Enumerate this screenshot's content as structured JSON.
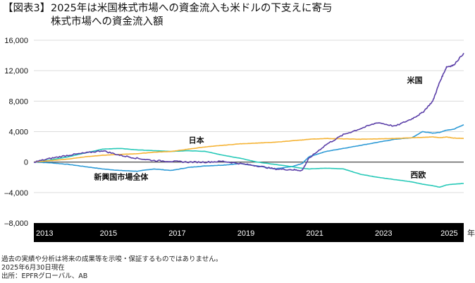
{
  "header": {
    "figure_tag": "【図表3】",
    "title": "2025年は米国株式市場への資金流入も米ドルの下支えに寄与",
    "subtitle": "株式市場への資金流入額"
  },
  "chart_data": {
    "type": "line",
    "title": "株式市場への資金流入額",
    "xlabel": "年",
    "ylabel": "",
    "xlim": [
      2013,
      2025.5
    ],
    "ylim": [
      -8000,
      16000
    ],
    "yticks": [
      16000,
      12000,
      8000,
      4000,
      0,
      -4000,
      -8000
    ],
    "ytick_labels": [
      "16,000",
      "12,000",
      "8,000",
      "4,000",
      "0",
      "–4,000",
      "–8,000"
    ],
    "xticks": [
      2013,
      2015,
      2017,
      2019,
      2021,
      2023,
      2025
    ],
    "xtick_labels": [
      "2013",
      "2015",
      "2017",
      "2019",
      "2021",
      "2023",
      "2025"
    ],
    "grid": true,
    "legend": "inline-labels",
    "x": [
      2013,
      2013.5,
      2014,
      2014.5,
      2015,
      2015.5,
      2016,
      2016.5,
      2017,
      2017.5,
      2018,
      2018.5,
      2019,
      2019.5,
      2020,
      2020.5,
      2020.8,
      2021,
      2021.5,
      2022,
      2022.5,
      2023,
      2023.5,
      2024,
      2024.3,
      2024.6,
      2024.8,
      2025,
      2025.2,
      2025.5
    ],
    "series": [
      {
        "name": "米国",
        "color": "#5b3fa8",
        "values": [
          0,
          500,
          900,
          1200,
          1500,
          900,
          500,
          200,
          100,
          0,
          0,
          100,
          -200,
          -500,
          -900,
          -1000,
          -1100,
          500,
          2300,
          3600,
          4400,
          5200,
          4700,
          5700,
          6500,
          8000,
          10500,
          12500,
          12700,
          14300
        ]
      },
      {
        "name": "日本",
        "color": "#f5b335",
        "values": [
          0,
          200,
          400,
          700,
          900,
          1000,
          1100,
          1300,
          1400,
          1700,
          2000,
          2200,
          2400,
          2500,
          2600,
          2800,
          2900,
          3000,
          3100,
          3050,
          3000,
          3050,
          3100,
          3200,
          3250,
          3300,
          3200,
          3300,
          3150,
          3100
        ]
      },
      {
        "name": "西欧",
        "color": "#27c9b8",
        "values": [
          0,
          300,
          700,
          1200,
          1700,
          1800,
          1600,
          1500,
          1400,
          1500,
          1400,
          900,
          500,
          0,
          -300,
          -600,
          -800,
          -900,
          -800,
          -900,
          -1600,
          -2000,
          -2300,
          -2600,
          -2900,
          -3100,
          -3300,
          -3000,
          -2900,
          -2800
        ]
      },
      {
        "name": "新興国市場全体",
        "color": "#2d9ad6",
        "values": [
          0,
          -100,
          -300,
          -600,
          -900,
          -1100,
          -1200,
          -900,
          -1100,
          -700,
          -500,
          -400,
          -200,
          -500,
          -900,
          -600,
          -200,
          700,
          1400,
          1800,
          2200,
          2600,
          3000,
          3200,
          4000,
          3800,
          3900,
          4200,
          4300,
          4900
        ]
      }
    ],
    "annotations": [
      {
        "text": "米国",
        "series": "米国"
      },
      {
        "text": "日本",
        "series": "日本"
      },
      {
        "text": "西欧",
        "series": "西欧"
      },
      {
        "text": "新興国市場全体",
        "series": "新興国市場全体"
      }
    ]
  },
  "footnotes": {
    "disclaimer": "過去の実績や分析は将来の成果等を示唆・保証するものではありません。",
    "as_of": "2025年6月30日現在",
    "source": "出所：EPFRグローバル、AB"
  }
}
